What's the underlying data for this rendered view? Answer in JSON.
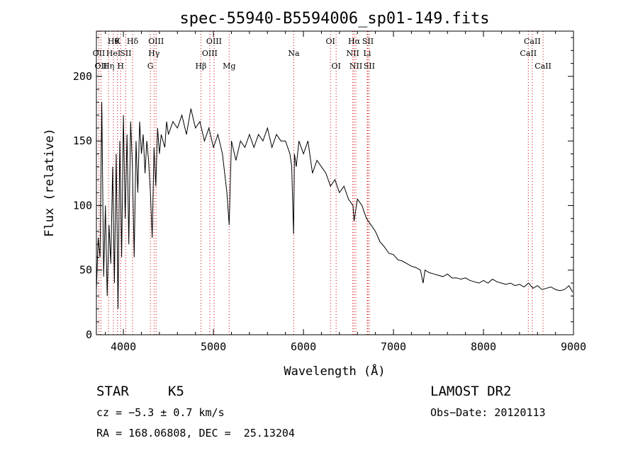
{
  "chart_data": {
    "type": "line",
    "title": "spec-55940-B5594006_sp01-149.fits",
    "xlabel": "Wavelength (Å)",
    "ylabel": "Flux (relative)",
    "xlim": [
      3700,
      9000
    ],
    "ylim": [
      0,
      235
    ],
    "x_ticks": [
      4000,
      5000,
      6000,
      7000,
      8000,
      9000
    ],
    "y_ticks": [
      0,
      50,
      100,
      150,
      200
    ],
    "grid": false,
    "series": [
      {
        "x": [
          3700,
          3720,
          3740,
          3760,
          3780,
          3800,
          3820,
          3840,
          3860,
          3880,
          3900,
          3920,
          3940,
          3960,
          3980,
          4000,
          4020,
          4040,
          4060,
          4080,
          4100,
          4120,
          4140,
          4160,
          4180,
          4200,
          4220,
          4240,
          4260,
          4280,
          4300,
          4320,
          4340,
          4360,
          4380,
          4400,
          4420,
          4440,
          4460,
          4480,
          4500,
          4550,
          4600,
          4650,
          4700,
          4750,
          4800,
          4850,
          4900,
          4950,
          5000,
          5050,
          5100,
          5150,
          5175,
          5200,
          5250,
          5300,
          5350,
          5400,
          5450,
          5500,
          5550,
          5600,
          5650,
          5700,
          5750,
          5800,
          5850,
          5870,
          5890,
          5900,
          5920,
          5950,
          6000,
          6050,
          6100,
          6150,
          6200,
          6250,
          6300,
          6350,
          6400,
          6450,
          6500,
          6550,
          6563,
          6600,
          6650,
          6700,
          6750,
          6800,
          6850,
          6900,
          6950,
          7000,
          7050,
          7100,
          7150,
          7200,
          7250,
          7300,
          7330,
          7350,
          7400,
          7450,
          7500,
          7550,
          7600,
          7650,
          7700,
          7750,
          7800,
          7850,
          7900,
          7950,
          8000,
          8050,
          8100,
          8150,
          8200,
          8250,
          8300,
          8350,
          8400,
          8450,
          8500,
          8550,
          8600,
          8650,
          8700,
          8750,
          8800,
          8850,
          8900,
          8950,
          8990
        ],
        "y": [
          35,
          75,
          60,
          180,
          45,
          100,
          30,
          85,
          55,
          130,
          40,
          140,
          20,
          150,
          60,
          170,
          90,
          155,
          70,
          165,
          130,
          60,
          150,
          110,
          165,
          140,
          155,
          125,
          150,
          135,
          110,
          75,
          145,
          115,
          160,
          140,
          155,
          150,
          145,
          165,
          155,
          165,
          160,
          170,
          155,
          175,
          160,
          165,
          150,
          160,
          145,
          155,
          140,
          110,
          85,
          150,
          135,
          150,
          145,
          155,
          145,
          155,
          150,
          160,
          145,
          155,
          150,
          150,
          140,
          130,
          78,
          140,
          130,
          150,
          140,
          150,
          125,
          135,
          130,
          125,
          115,
          120,
          110,
          115,
          105,
          100,
          88,
          105,
          100,
          90,
          85,
          80,
          72,
          68,
          63,
          62,
          58,
          57,
          55,
          53,
          52,
          50,
          40,
          50,
          48,
          47,
          46,
          45,
          47,
          44,
          44,
          43,
          44,
          42,
          41,
          40,
          42,
          40,
          43,
          41,
          40,
          39,
          40,
          38,
          39,
          37,
          40,
          36,
          38,
          35,
          36,
          37,
          35,
          34,
          35,
          38,
          33
        ]
      }
    ],
    "line_annotations": [
      {
        "wl": 3727,
        "labels": [
          "",
          "OII"
        ]
      },
      {
        "wl": 3750,
        "labels": [
          "",
          "",
          "OII"
        ]
      },
      {
        "wl": 3835,
        "labels": [
          "",
          "",
          "Hη"
        ]
      },
      {
        "wl": 3889,
        "labels": [
          "Hθ",
          "HeI"
        ]
      },
      {
        "wl": 3934,
        "labels": [
          "K"
        ]
      },
      {
        "wl": 3969,
        "labels": [
          "",
          "",
          "H"
        ]
      },
      {
        "wl": 4026,
        "labels": [
          "",
          "SII"
        ]
      },
      {
        "wl": 4102,
        "labels": [
          "Hδ"
        ]
      },
      {
        "wl": 4300,
        "labels": [
          "",
          "",
          "G"
        ]
      },
      {
        "wl": 4340,
        "labels": [
          "",
          "Hγ"
        ]
      },
      {
        "wl": 4363,
        "labels": [
          "OIII"
        ]
      },
      {
        "wl": 4861,
        "labels": [
          "",
          "",
          "Hβ"
        ]
      },
      {
        "wl": 4959,
        "labels": [
          "",
          "OIII"
        ]
      },
      {
        "wl": 5007,
        "labels": [
          "OIII"
        ]
      },
      {
        "wl": 5175,
        "labels": [
          "",
          "",
          "Mg"
        ]
      },
      {
        "wl": 5893,
        "labels": [
          "",
          "Na"
        ]
      },
      {
        "wl": 6300,
        "labels": [
          "OI"
        ]
      },
      {
        "wl": 6363,
        "labels": [
          "",
          "",
          "OI"
        ]
      },
      {
        "wl": 6548,
        "labels": [
          "",
          "NII"
        ]
      },
      {
        "wl": 6563,
        "labels": [
          "Hα"
        ]
      },
      {
        "wl": 6583,
        "labels": [
          "",
          "",
          "NII"
        ]
      },
      {
        "wl": 6708,
        "labels": [
          "",
          "Li"
        ]
      },
      {
        "wl": 6716,
        "labels": [
          "SII"
        ]
      },
      {
        "wl": 6731,
        "labels": [
          "",
          "",
          "SII"
        ]
      },
      {
        "wl": 8498,
        "labels": [
          "",
          "CaII"
        ]
      },
      {
        "wl": 8542,
        "labels": [
          "CaII"
        ]
      },
      {
        "wl": 8662,
        "labels": [
          "",
          "",
          "CaII"
        ]
      }
    ]
  },
  "info": {
    "object_class": "STAR",
    "subclass": "K5",
    "survey": "LAMOST DR2",
    "redshift": "cz = −5.3 ± 0.7 km/s",
    "obs_date": "Obs−Date: 20120113",
    "coords": "RA = 168.06808, DEC =  25.13204"
  },
  "colors": {
    "line": "#000000",
    "marker": "#cc0000",
    "axis": "#000000"
  }
}
